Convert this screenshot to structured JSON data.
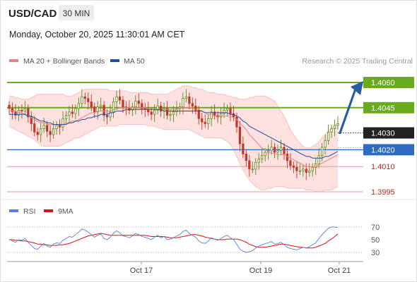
{
  "header": {
    "pair": "USD/CAD",
    "timeframe": "30 MIN",
    "datetime": "Monday, October 20, 2025 11:30:01 AM CET"
  },
  "legend": {
    "bollinger_label": "MA 20 + Bollinger Bands",
    "ma50_label": "MA 50",
    "credit": "Research © 2025 Trading Central",
    "bollinger_color": "#f08080",
    "ma50_color": "#1f4e9a"
  },
  "rsi_legend": {
    "rsi_label": "RSI",
    "ma_label": "9MA",
    "rsi_color": "#5b7fd6",
    "ma_color": "#dd1111"
  },
  "chart_data": {
    "type": "candlestick",
    "price_axis": {
      "ylim": [
        1.3985,
        1.4075
      ]
    },
    "x_ticks": [
      "Oct 17",
      "Oct 19",
      "Oct 21"
    ],
    "current_price": 1.403,
    "levels": [
      {
        "value": 1.406,
        "label": "1.4060",
        "kind": "resistance",
        "color": "#6aaa1e"
      },
      {
        "value": 1.4045,
        "label": "1.4045",
        "kind": "resistance",
        "color": "#6aaa1e"
      },
      {
        "value": 1.403,
        "label": "1.4030",
        "kind": "last",
        "color": "#222222"
      },
      {
        "value": 1.402,
        "label": "1.4020",
        "kind": "pivot",
        "color": "#2d6cc0"
      },
      {
        "value": 1.401,
        "label": "1.4010",
        "kind": "support",
        "color": "#d02020"
      },
      {
        "value": 1.3995,
        "label": "1.3995",
        "kind": "support",
        "color": "#d02020"
      }
    ],
    "candle_close": [
      1.40445,
      1.40425,
      1.40405,
      1.40435,
      1.4043,
      1.40445,
      1.40395,
      1.40355,
      1.40305,
      1.4029,
      1.40325,
      1.40345,
      1.4031,
      1.4029,
      1.40325,
      1.40345,
      1.40335,
      1.40385,
      1.40405,
      1.40425,
      1.40415,
      1.40445,
      1.40475,
      1.40515,
      1.40505,
      1.40485,
      1.40455,
      1.40425,
      1.40455,
      1.40465,
      1.40405,
      1.40395,
      1.40425,
      1.40485,
      1.40515,
      1.40495,
      1.40455,
      1.4045,
      1.40435,
      1.40455,
      1.4049,
      1.40475,
      1.40445,
      1.4044,
      1.40425,
      1.4041,
      1.40435,
      1.4046,
      1.4043,
      1.40445,
      1.40405,
      1.4041,
      1.40425,
      1.40445,
      1.40455,
      1.40505,
      1.40515,
      1.40475,
      1.4046,
      1.40435,
      1.40385,
      1.40365,
      1.40355,
      1.40385,
      1.40425,
      1.40405,
      1.40395,
      1.40415,
      1.40435,
      1.40445,
      1.40415,
      1.40395,
      1.40335,
      1.40235,
      1.40175,
      1.40135,
      1.40085,
      1.40085,
      1.40125,
      1.40145,
      1.40165,
      1.40185,
      1.40195,
      1.40215,
      1.40185,
      1.40195,
      1.40215,
      1.40175,
      1.40135,
      1.40105,
      1.40095,
      1.40075,
      1.40075,
      1.40085,
      1.40065,
      1.40075,
      1.40095,
      1.40115,
      1.40165,
      1.40215,
      1.40255,
      1.40305,
      1.40325,
      1.40345,
      1.40355
    ],
    "ma50": [
      1.4041,
      1.4041,
      1.4041,
      1.4041,
      1.4041,
      1.4041,
      1.404,
      1.404,
      1.4039,
      1.4038,
      1.4037,
      1.4037,
      1.4036,
      1.4036,
      1.4035,
      1.4035,
      1.4035,
      1.4035,
      1.4035,
      1.4036,
      1.4036,
      1.4037,
      1.4037,
      1.4038,
      1.4038,
      1.4039,
      1.4039,
      1.404,
      1.404,
      1.4041,
      1.4041,
      1.4041,
      1.4042,
      1.4042,
      1.4043,
      1.4043,
      1.4043,
      1.4044,
      1.4044,
      1.4044,
      1.4044,
      1.4044,
      1.4044,
      1.4044,
      1.4044,
      1.4044,
      1.4044,
      1.4044,
      1.4044,
      1.4043,
      1.4043,
      1.4043,
      1.4043,
      1.4043,
      1.4043,
      1.4043,
      1.4043,
      1.4043,
      1.4043,
      1.4043,
      1.4043,
      1.4043,
      1.4042,
      1.4042,
      1.4042,
      1.4042,
      1.4042,
      1.4042,
      1.4042,
      1.4042,
      1.4041,
      1.4041,
      1.404,
      1.4039,
      1.4037,
      1.4036,
      1.4034,
      1.4033,
      1.4032,
      1.4031,
      1.403,
      1.4029,
      1.4028,
      1.4027,
      1.4026,
      1.4025,
      1.4024,
      1.4023,
      1.4022,
      1.4021,
      1.402,
      1.4019,
      1.4018,
      1.4017,
      1.4016,
      1.4016,
      1.4015,
      1.4015,
      1.4015,
      1.4015,
      1.4016,
      1.4016,
      1.4017,
      1.4018,
      1.4019
    ],
    "bb_upper": [
      1.4052,
      1.4052,
      1.4051,
      1.4051,
      1.405,
      1.405,
      1.405,
      1.4051,
      1.4052,
      1.4053,
      1.4053,
      1.4053,
      1.4053,
      1.4053,
      1.4053,
      1.4053,
      1.4053,
      1.4053,
      1.4052,
      1.4052,
      1.4052,
      1.4053,
      1.4054,
      1.4055,
      1.4056,
      1.4056,
      1.4056,
      1.4056,
      1.4056,
      1.4056,
      1.4056,
      1.4056,
      1.4055,
      1.4055,
      1.4055,
      1.4055,
      1.4055,
      1.4055,
      1.4054,
      1.4054,
      1.4054,
      1.4054,
      1.4054,
      1.4054,
      1.4054,
      1.4053,
      1.4053,
      1.4053,
      1.4053,
      1.4053,
      1.4053,
      1.4054,
      1.4055,
      1.4056,
      1.4057,
      1.4058,
      1.4058,
      1.4058,
      1.4057,
      1.4057,
      1.4056,
      1.4056,
      1.4055,
      1.4054,
      1.4054,
      1.4054,
      1.4053,
      1.4053,
      1.4053,
      1.4052,
      1.4052,
      1.4051,
      1.4051,
      1.405,
      1.405,
      1.405,
      1.4051,
      1.4051,
      1.4052,
      1.4052,
      1.4052,
      1.4052,
      1.4051,
      1.405,
      1.4049,
      1.4046,
      1.4043,
      1.404,
      1.4036,
      1.4032,
      1.4029,
      1.4026,
      1.4024,
      1.4022,
      1.4021,
      1.4021,
      1.4022,
      1.4023,
      1.4025,
      1.4027,
      1.4029,
      1.4031,
      1.4033,
      1.4034,
      1.4035
    ],
    "bb_mid": [
      1.4043,
      1.4043,
      1.4043,
      1.4042,
      1.4042,
      1.4041,
      1.404,
      1.4039,
      1.4038,
      1.4037,
      1.4036,
      1.4036,
      1.4035,
      1.4035,
      1.4035,
      1.4035,
      1.4035,
      1.4035,
      1.4036,
      1.4036,
      1.4037,
      1.4037,
      1.4038,
      1.4039,
      1.404,
      1.4041,
      1.4042,
      1.4042,
      1.4043,
      1.4043,
      1.4043,
      1.4043,
      1.4043,
      1.4044,
      1.4044,
      1.4045,
      1.4045,
      1.4045,
      1.4045,
      1.4045,
      1.4045,
      1.4045,
      1.4045,
      1.4045,
      1.4044,
      1.4044,
      1.4044,
      1.4044,
      1.4044,
      1.4044,
      1.4044,
      1.4044,
      1.4044,
      1.4044,
      1.4045,
      1.4045,
      1.4045,
      1.4045,
      1.4045,
      1.4044,
      1.4044,
      1.4043,
      1.4042,
      1.4041,
      1.4041,
      1.404,
      1.404,
      1.404,
      1.404,
      1.404,
      1.404,
      1.4039,
      1.4038,
      1.4036,
      1.4034,
      1.4032,
      1.4029,
      1.4027,
      1.4025,
      1.4023,
      1.4021,
      1.402,
      1.4019,
      1.4018,
      1.4018,
      1.4017,
      1.4017,
      1.4017,
      1.4016,
      1.4015,
      1.4014,
      1.4013,
      1.4012,
      1.4011,
      1.401,
      1.401,
      1.401,
      1.401,
      1.4011,
      1.4012,
      1.4013,
      1.4014,
      1.4015,
      1.4016,
      1.4017
    ],
    "bb_lower": [
      1.4034,
      1.4033,
      1.4032,
      1.4031,
      1.403,
      1.4029,
      1.4028,
      1.4027,
      1.4026,
      1.4024,
      1.4023,
      1.4022,
      1.4022,
      1.4022,
      1.4022,
      1.4022,
      1.4022,
      1.4023,
      1.4024,
      1.4025,
      1.4026,
      1.4027,
      1.4027,
      1.4028,
      1.4029,
      1.403,
      1.4031,
      1.4032,
      1.4033,
      1.4034,
      1.4034,
      1.4034,
      1.4034,
      1.4034,
      1.4034,
      1.4035,
      1.4035,
      1.4035,
      1.4035,
      1.4035,
      1.4035,
      1.4035,
      1.4035,
      1.4035,
      1.4034,
      1.4034,
      1.4034,
      1.4033,
      1.4033,
      1.4032,
      1.4032,
      1.4032,
      1.4032,
      1.4032,
      1.4032,
      1.4032,
      1.4032,
      1.4032,
      1.4031,
      1.403,
      1.4029,
      1.4028,
      1.4027,
      1.4027,
      1.4027,
      1.4027,
      1.4027,
      1.4027,
      1.4026,
      1.4025,
      1.4023,
      1.402,
      1.4016,
      1.4012,
      1.4008,
      1.4005,
      1.4002,
      1.4,
      1.3998,
      1.3997,
      1.3996,
      1.3996,
      1.3997,
      1.3997,
      1.3998,
      1.3998,
      1.3998,
      1.3998,
      1.3997,
      1.3997,
      1.3997,
      1.3997,
      1.3997,
      1.3997,
      1.3996,
      1.3996,
      1.3996,
      1.3995,
      1.3995,
      1.3995,
      1.3996,
      1.3996,
      1.3996,
      1.3997,
      1.3998
    ],
    "rsi_axis": {
      "ticks": [
        70,
        50,
        30
      ],
      "ylim": [
        20,
        80
      ]
    },
    "rsi": [
      51,
      48,
      46,
      50,
      49,
      52,
      46,
      41,
      36,
      35,
      40,
      44,
      40,
      38,
      43,
      45,
      44,
      49,
      52,
      55,
      54,
      58,
      62,
      67,
      65,
      62,
      58,
      54,
      57,
      59,
      52,
      50,
      54,
      60,
      64,
      61,
      56,
      55,
      53,
      56,
      60,
      58,
      55,
      54,
      52,
      50,
      54,
      57,
      53,
      55,
      50,
      51,
      53,
      56,
      58,
      63,
      65,
      60,
      57,
      54,
      48,
      45,
      44,
      48,
      53,
      51,
      49,
      52,
      55,
      57,
      53,
      50,
      43,
      35,
      32,
      30,
      31,
      33,
      37,
      40,
      42,
      44,
      45,
      47,
      43,
      44,
      46,
      42,
      38,
      36,
      35,
      34,
      36,
      38,
      37,
      39,
      42,
      45,
      52,
      58,
      63,
      68,
      70,
      70,
      69
    ],
    "rsi_ma9": [
      50,
      50,
      49,
      49,
      48,
      48,
      47,
      46,
      45,
      43,
      43,
      42,
      42,
      41,
      41,
      41,
      42,
      42,
      43,
      44,
      46,
      48,
      50,
      52,
      54,
      56,
      57,
      58,
      59,
      60,
      59,
      58,
      57,
      57,
      57,
      57,
      57,
      57,
      57,
      57,
      57,
      57,
      57,
      57,
      56,
      55,
      55,
      55,
      55,
      55,
      54,
      53,
      53,
      53,
      54,
      55,
      56,
      57,
      58,
      58,
      57,
      56,
      54,
      53,
      52,
      51,
      50,
      50,
      50,
      51,
      51,
      51,
      51,
      50,
      48,
      46,
      43,
      41,
      39,
      38,
      38,
      38,
      39,
      40,
      41,
      42,
      43,
      43,
      42,
      41,
      40,
      39,
      38,
      38,
      37,
      37,
      37,
      38,
      40,
      42,
      44,
      48,
      51,
      55,
      59
    ],
    "annotation": "projected arrow from 1.4030 to 1.4060"
  },
  "colors": {
    "up_candle": "#5a8a1a",
    "down_candle": "#c0392b",
    "band_fill": "#fde0e0",
    "arrow": "#2e5d9e",
    "grid": "#dddddd"
  }
}
